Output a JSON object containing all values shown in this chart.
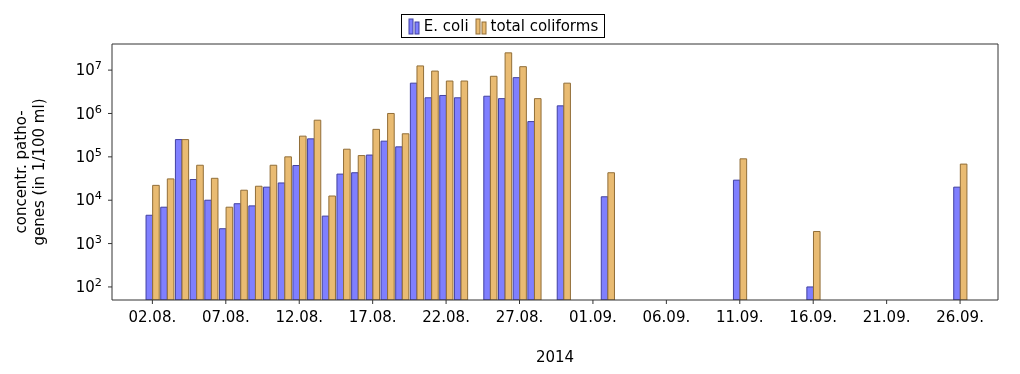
{
  "chart_data": {
    "type": "bar",
    "xlabel": "2014",
    "ylabel": "concentr. patho-\ngenes (in 1/100 ml)",
    "x": [
      "2014-08-02",
      "2014-08-03",
      "2014-08-04",
      "2014-08-05",
      "2014-08-06",
      "2014-08-07",
      "2014-08-08",
      "2014-08-09",
      "2014-08-10",
      "2014-08-11",
      "2014-08-12",
      "2014-08-13",
      "2014-08-14",
      "2014-08-15",
      "2014-08-16",
      "2014-08-17",
      "2014-08-18",
      "2014-08-19",
      "2014-08-20",
      "2014-08-21",
      "2014-08-22",
      "2014-08-23",
      "2014-08-25",
      "2014-08-26",
      "2014-08-27",
      "2014-08-28",
      "2014-08-30",
      "2014-09-02",
      "2014-09-11",
      "2014-09-16",
      "2014-09-26"
    ],
    "series": [
      {
        "name": "E. coli",
        "color": "#7f7fff",
        "values": [
          4500,
          6900,
          250000,
          30000,
          10000,
          2200,
          8300,
          7400,
          20000,
          25000,
          63000,
          260000,
          4300,
          40000,
          43000,
          110000,
          230000,
          170000,
          5000000,
          2300000,
          2600000,
          2300000,
          2500000,
          2200000,
          6700000,
          650000,
          1500000,
          12000,
          29000,
          100,
          20000
        ]
      },
      {
        "name": "total coliforms",
        "color": "#e9bb72",
        "values": [
          22000,
          31000,
          250000,
          64000,
          32000,
          6900,
          17000,
          21000,
          64000,
          100000,
          300000,
          700000,
          12500,
          150000,
          107000,
          430000,
          1000000,
          340000,
          12500000,
          9500000,
          5600000,
          5600000,
          7200000,
          25000000,
          12000000,
          2200000,
          5000000,
          43000,
          90000,
          1900,
          68000
        ]
      }
    ],
    "xlim": [
      "2014-07-30T06:00",
      "2014-09-28T14:00"
    ],
    "xticks": [
      {
        "value": "2014-08-02",
        "label": "02.08."
      },
      {
        "value": "2014-08-07",
        "label": "07.08."
      },
      {
        "value": "2014-08-12",
        "label": "12.08."
      },
      {
        "value": "2014-08-17",
        "label": "17.08."
      },
      {
        "value": "2014-08-22",
        "label": "22.08."
      },
      {
        "value": "2014-08-27",
        "label": "27.08."
      },
      {
        "value": "2014-09-01",
        "label": "01.09."
      },
      {
        "value": "2014-09-06",
        "label": "06.09."
      },
      {
        "value": "2014-09-11",
        "label": "11.09."
      },
      {
        "value": "2014-09-16",
        "label": "16.09."
      },
      {
        "value": "2014-09-21",
        "label": "21.09."
      },
      {
        "value": "2014-09-26",
        "label": "26.09."
      }
    ],
    "log": "y",
    "ylim": [
      50,
      40000000
    ],
    "yticks": [
      {
        "value": 100,
        "label": "10$^{2}$"
      },
      {
        "value": 1000,
        "label": "10$^{3}$"
      },
      {
        "value": 10000,
        "label": "10$^{4}$"
      },
      {
        "value": 100000,
        "label": "10$^{5}$"
      },
      {
        "value": 1000000,
        "label": "10$^{6}$"
      },
      {
        "value": 10000000,
        "label": "10$^{7}$"
      }
    ],
    "grid": false,
    "legend": "top"
  }
}
